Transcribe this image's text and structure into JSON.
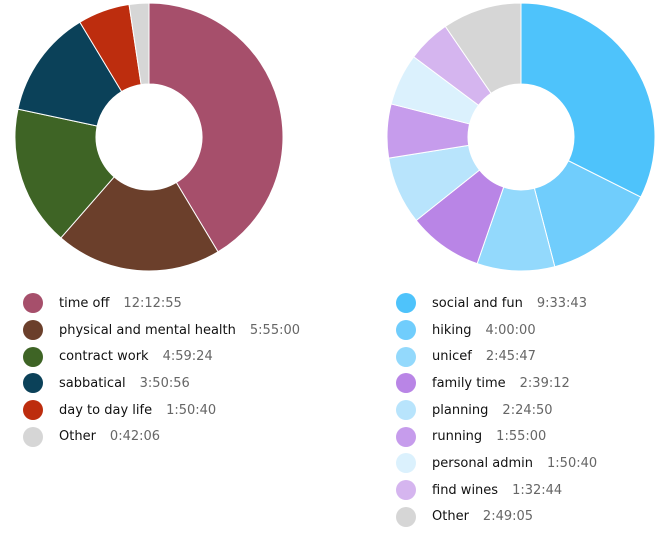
{
  "chart_data": [
    {
      "type": "pie",
      "donut": true,
      "categories": [
        "time off",
        "physical and mental health",
        "contract work",
        "sabbatical",
        "day to day life",
        "Other"
      ],
      "values": [
        "12:12:55",
        "5:55:00",
        "4:59:24",
        "3:50:56",
        "1:50:40",
        "0:42:06"
      ],
      "colors": [
        "#a64f6b",
        "#6b3f2b",
        "#3e6425",
        "#0b4159",
        "#bd2d0e",
        "#d6d6d6"
      ],
      "legend": "bottom"
    },
    {
      "type": "pie",
      "donut": true,
      "categories": [
        "social and fun",
        "hiking",
        "unicef",
        "family time",
        "planning",
        "running",
        "personal admin",
        "find wines",
        "Other"
      ],
      "values": [
        "9:33:43",
        "4:00:00",
        "2:45:47",
        "2:39:12",
        "2:24:50",
        "1:55:00",
        "1:50:40",
        "1:32:44",
        "2:49:05"
      ],
      "colors": [
        "#4ec3fb",
        "#70cdfc",
        "#93d9fc",
        "#b985e6",
        "#b8e4fc",
        "#c69cec",
        "#dbf1fd",
        "#d5b5ef",
        "#d6d6d6"
      ],
      "legend": "bottom"
    }
  ]
}
